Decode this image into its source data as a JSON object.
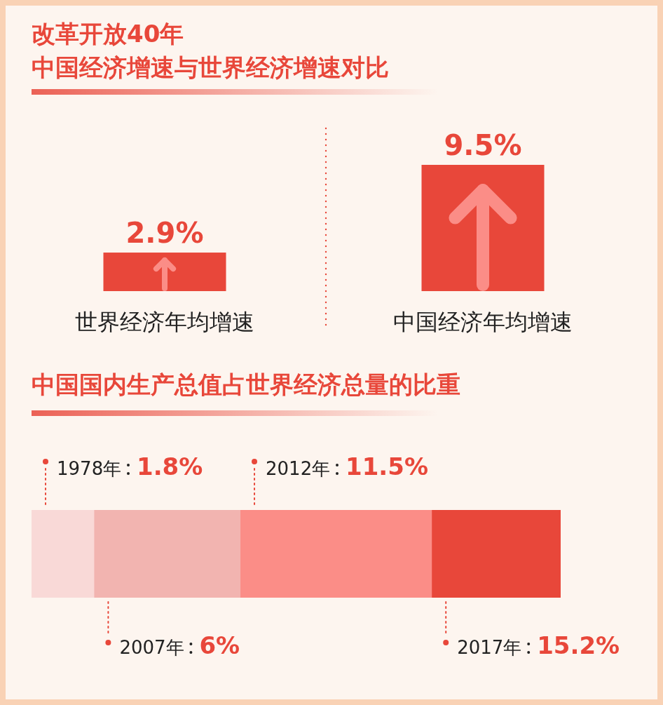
{
  "chart_data": [
    {
      "type": "bar",
      "title": "改革开放40年",
      "subtitle": "中国经济增速与世界经济增速对比",
      "categories": [
        "世界经济年均增速",
        "中国经济年均增速"
      ],
      "values": [
        2.9,
        9.5
      ],
      "value_labels": [
        "2.9%",
        "9.5%"
      ],
      "color": "#e8473a"
    },
    {
      "type": "other",
      "title": "中国国内生产总值占世界经济总量的比重",
      "categories": [
        "1978年",
        "2007年",
        "2012年",
        "2017年"
      ],
      "values": [
        1.8,
        6,
        11.5,
        15.2
      ],
      "value_labels": [
        "1.8%",
        "6%",
        "11.5%",
        "15.2%"
      ],
      "colors": [
        "#f9d9d7",
        "#f2b4b0",
        "#fb8d87",
        "#e8473a"
      ]
    }
  ]
}
